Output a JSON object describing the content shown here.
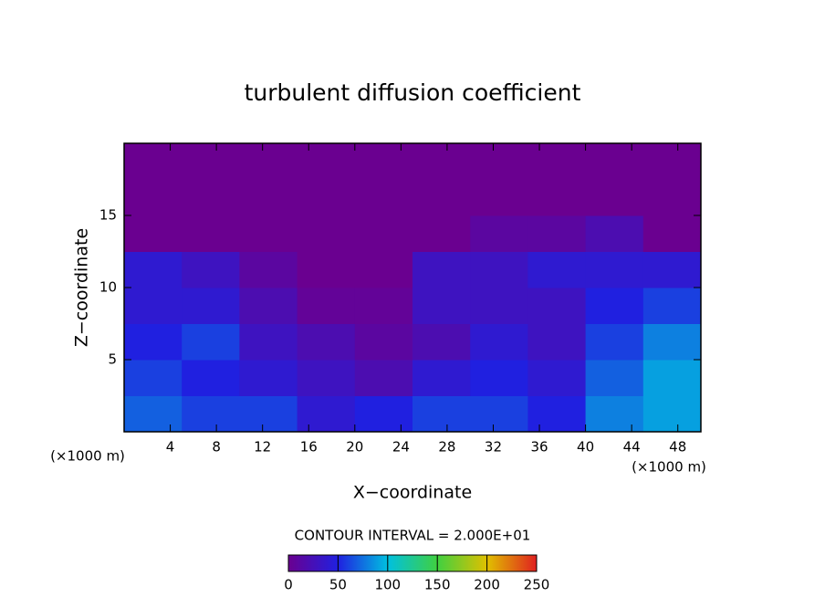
{
  "chart_data": {
    "type": "heatmap",
    "title": "turbulent diffusion coefficient",
    "x_label": "X−coordinate",
    "y_label": "Z−coordinate",
    "x_unit_left": "(×1000 m)",
    "x_unit_right": "(×1000 m)",
    "contour_interval": "CONTOUR INTERVAL = 2.000E+01",
    "x": [
      2.5,
      7.5,
      12.5,
      17.5,
      22.5,
      27.5,
      32.5,
      37.5,
      42.5,
      47.5
    ],
    "y": [
      1.25,
      3.75,
      6.25,
      8.75,
      11.25,
      13.75,
      16.25,
      18.75
    ],
    "z": [
      [
        70,
        60,
        60,
        40,
        50,
        60,
        60,
        50,
        80,
        90
      ],
      [
        60,
        50,
        40,
        30,
        20,
        40,
        50,
        40,
        70,
        90
      ],
      [
        50,
        60,
        30,
        20,
        10,
        20,
        40,
        30,
        60,
        80
      ],
      [
        40,
        40,
        20,
        5,
        5,
        30,
        30,
        30,
        50,
        60
      ],
      [
        40,
        30,
        10,
        0,
        0,
        30,
        30,
        40,
        40,
        40
      ],
      [
        0,
        0,
        0,
        0,
        0,
        0,
        10,
        10,
        20,
        0
      ],
      [
        0,
        0,
        0,
        0,
        0,
        0,
        0,
        0,
        0,
        0
      ],
      [
        0,
        0,
        0,
        0,
        0,
        0,
        0,
        0,
        0,
        0
      ]
    ],
    "xlim": [
      0,
      50
    ],
    "ylim": [
      0,
      20
    ],
    "xticks": [
      4,
      8,
      12,
      16,
      20,
      24,
      28,
      32,
      36,
      40,
      44,
      48
    ],
    "yticks": [
      5,
      10,
      15
    ],
    "clim": [
      0,
      250
    ],
    "cticks": [
      0,
      50,
      100,
      150,
      200,
      250
    ],
    "colors": [
      "#6a0090",
      "#2020e0",
      "#00c0e0",
      "#40d040",
      "#e0c000",
      "#e02020"
    ]
  }
}
